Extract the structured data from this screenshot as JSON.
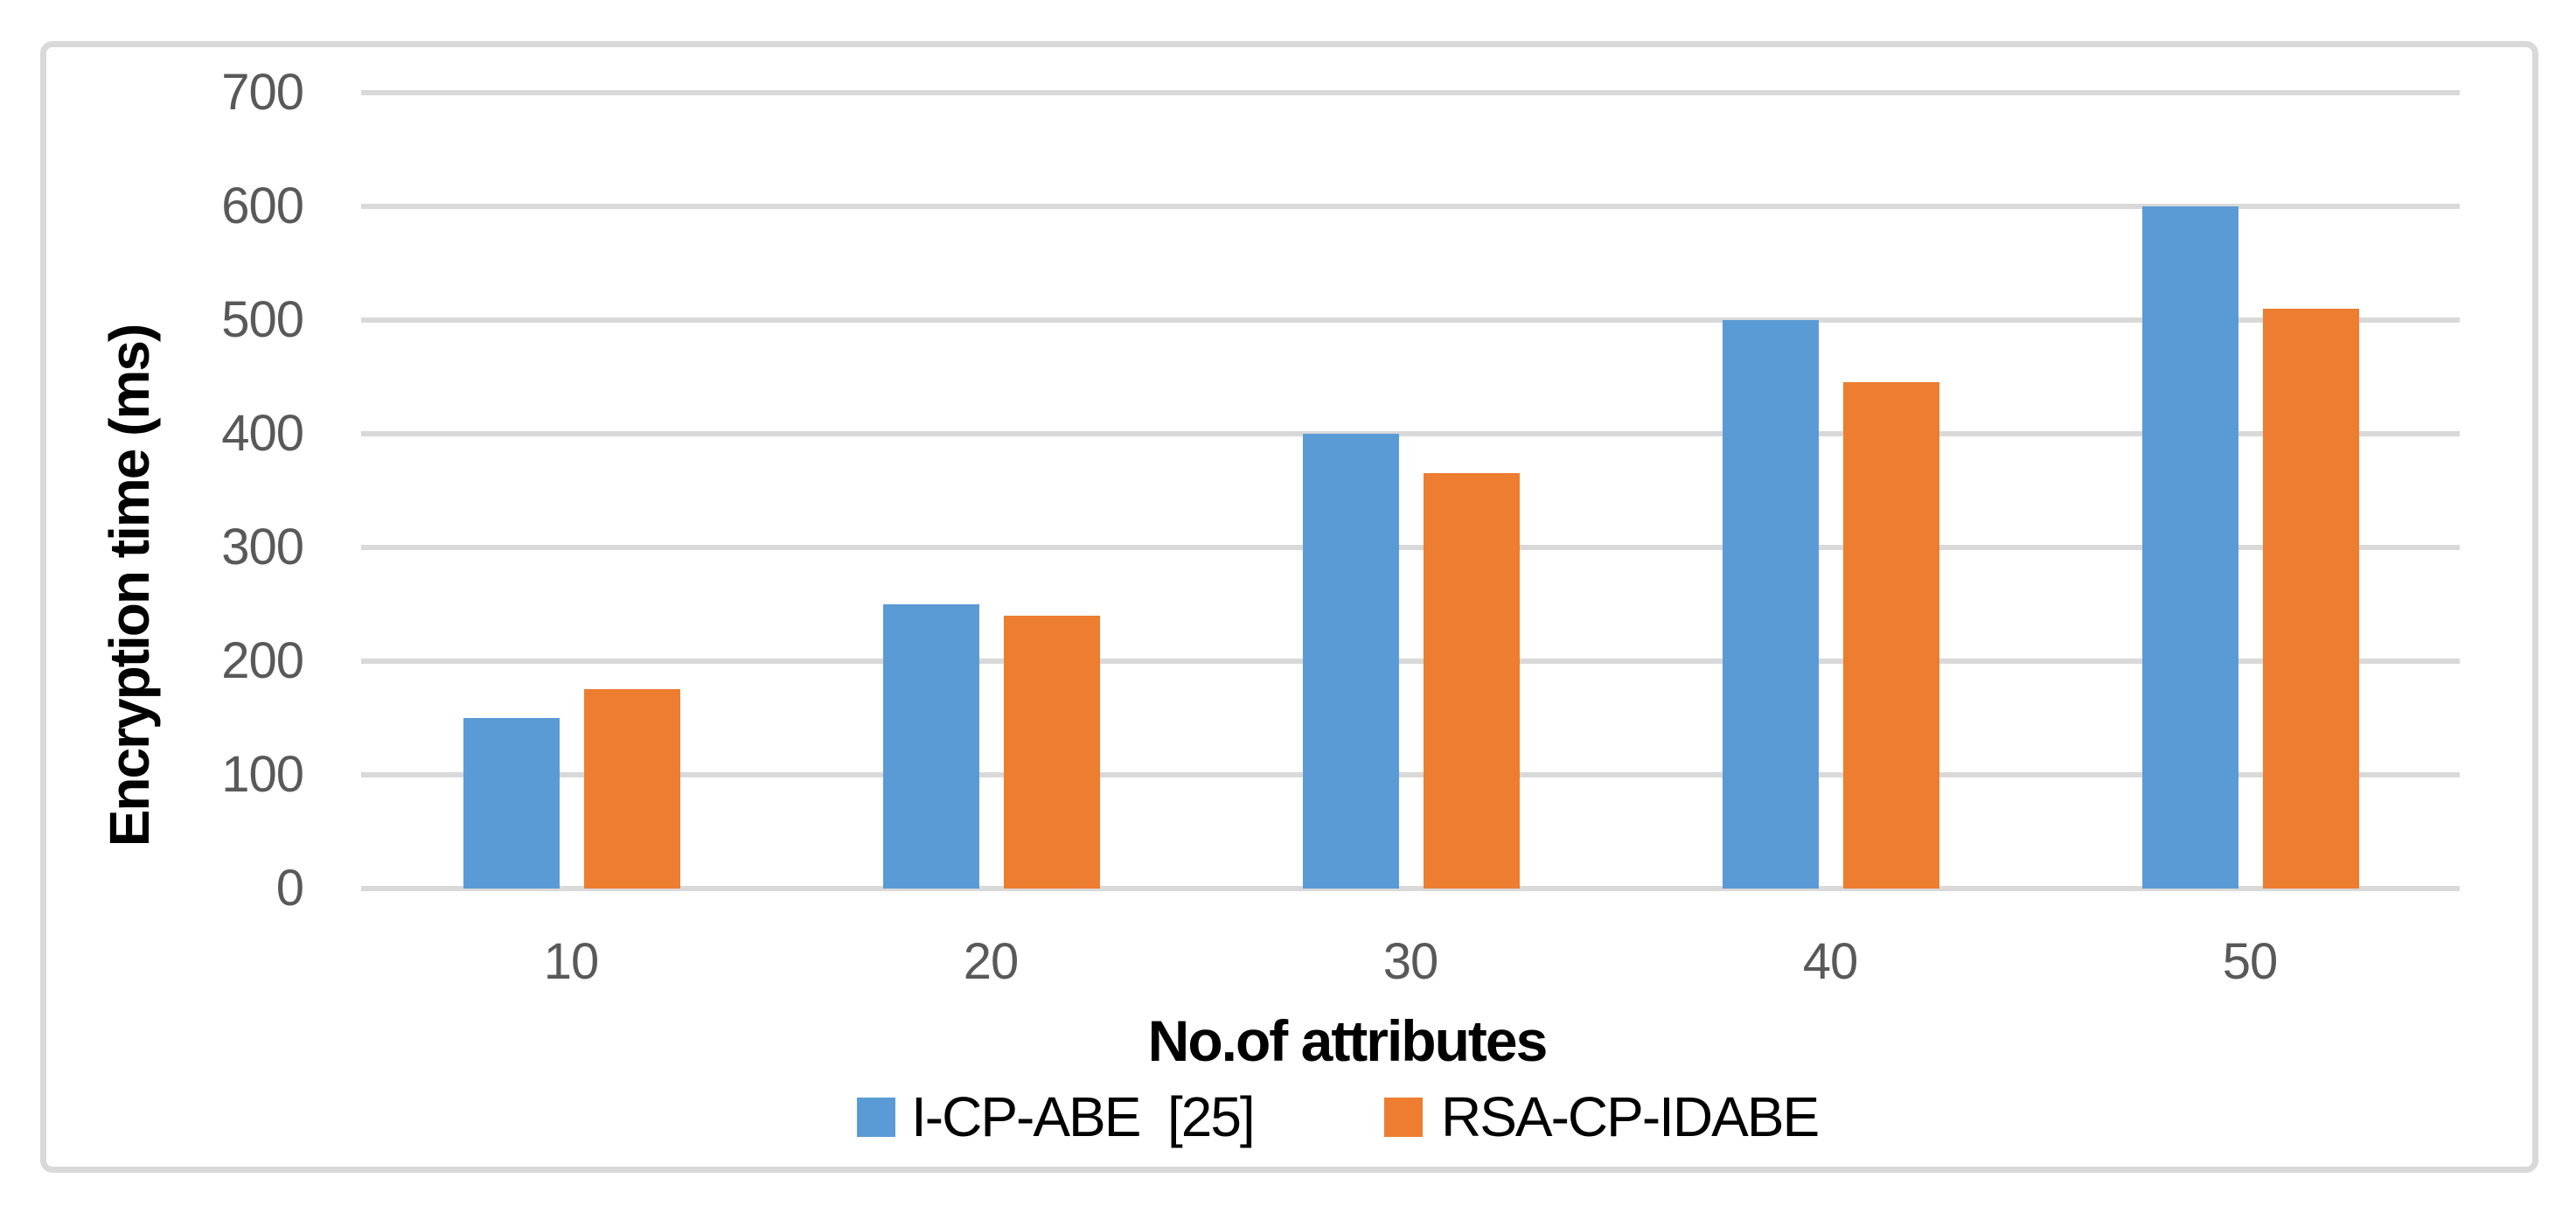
{
  "figure": {
    "background_color": "#FFFFFF",
    "frame_color": "#D9D9D9"
  },
  "chart_data": {
    "type": "bar",
    "title": "",
    "xlabel": "No.of attributes",
    "ylabel": "Encryption time (ms)",
    "categories": [
      "10",
      "20",
      "30",
      "40",
      "50"
    ],
    "series": [
      {
        "name": "I-CP-ABE  [25]",
        "color": "#5B9BD5",
        "values": [
          150,
          250,
          400,
          500,
          600
        ]
      },
      {
        "name": "RSA-CP-IDABE",
        "color": "#ED7D31",
        "values": [
          175,
          240,
          365,
          445,
          510
        ]
      }
    ],
    "ylim": [
      0,
      700
    ],
    "ytick_interval": 100,
    "yticks": [
      0,
      100,
      200,
      300,
      400,
      500,
      600,
      700
    ],
    "grid": "horizontal",
    "gridline_color": "#D9D9D9",
    "tick_label_color": "#595959",
    "legend_position": "bottom"
  }
}
